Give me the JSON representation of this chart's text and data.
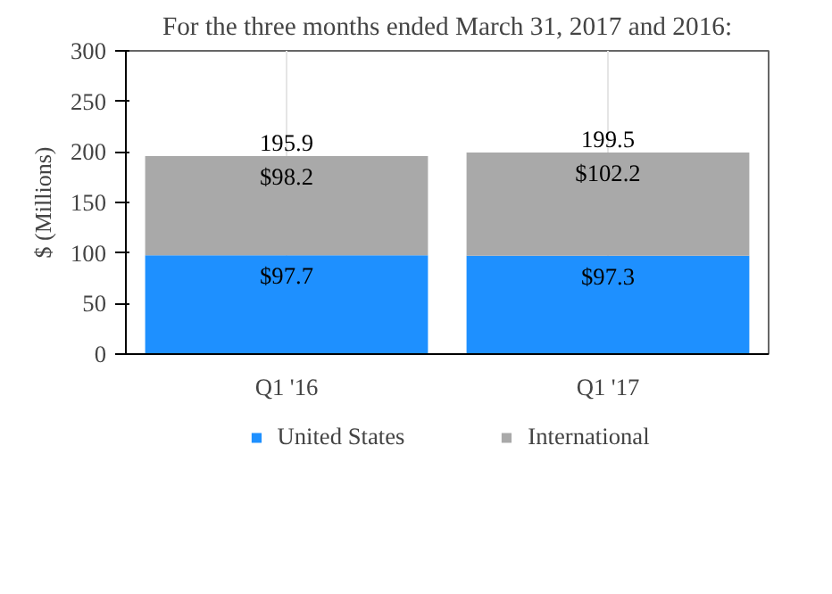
{
  "chart_data": {
    "type": "bar",
    "title": "For the three months ended March 31, 2017 and 2016:",
    "ylabel": "$ (Millions)",
    "categories": [
      "Q1 '16",
      "Q1 '17"
    ],
    "stacked": true,
    "series": [
      {
        "name": "United States",
        "color": "#1e90ff",
        "values": [
          97.7,
          97.3
        ],
        "value_labels": [
          "$97.7",
          "$97.3"
        ]
      },
      {
        "name": "International",
        "color": "#a9a9a9",
        "values": [
          98.2,
          102.2
        ],
        "value_labels": [
          "$98.2",
          "$102.2"
        ]
      }
    ],
    "totals": [
      "195.9",
      "199.5"
    ],
    "ylim": [
      0,
      300
    ],
    "yticks": [
      0,
      50,
      100,
      150,
      200,
      250,
      300
    ],
    "grid": "x",
    "legend": "bottom"
  }
}
